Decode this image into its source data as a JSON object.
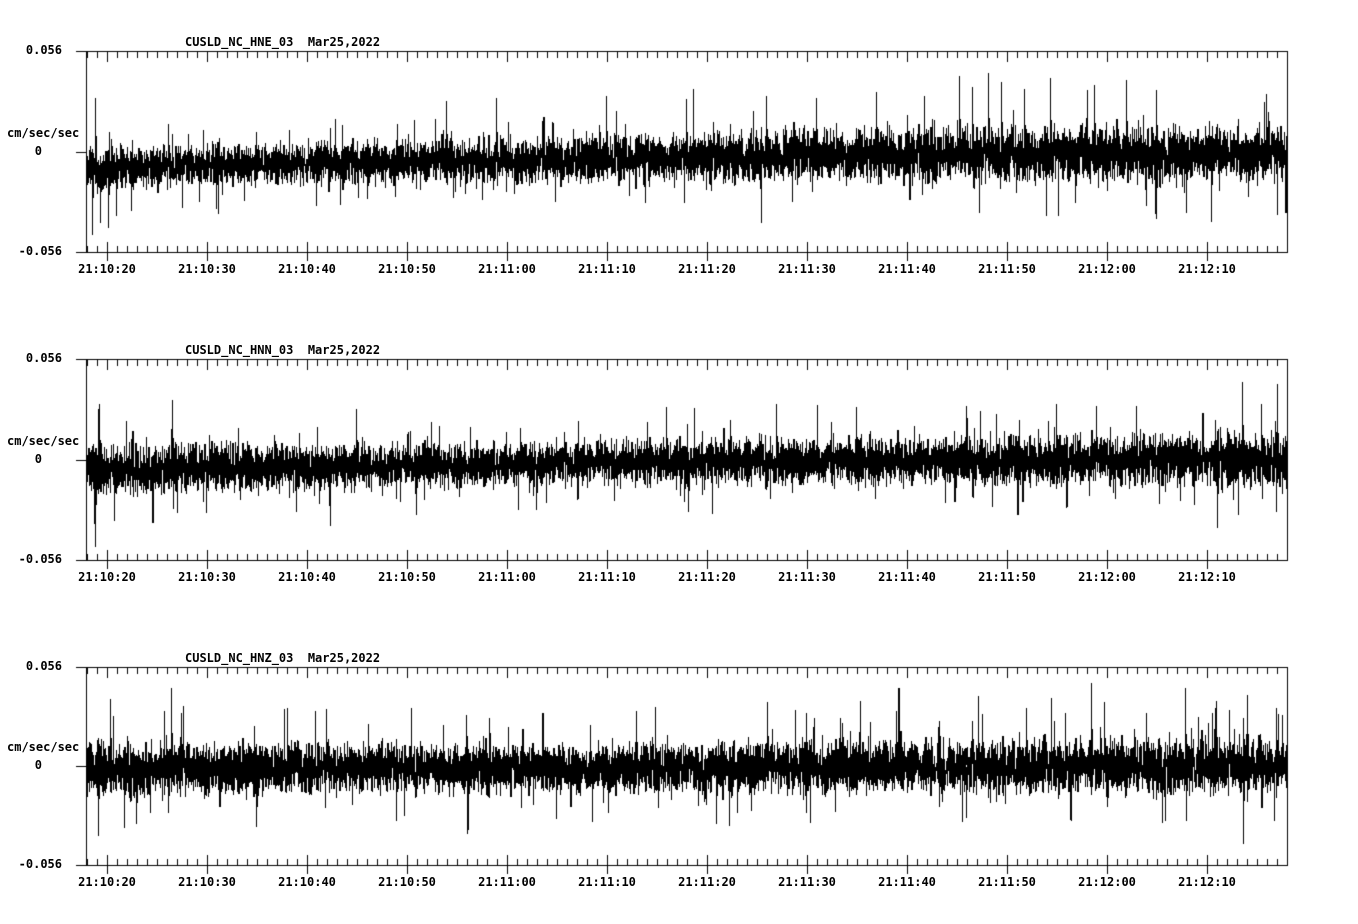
{
  "figure": {
    "background": "#ffffff",
    "foreground": "#000000"
  },
  "chart_data": [
    {
      "type": "line",
      "subtype": "seismogram-minmax-trace",
      "title": "CUSLD_NC_HNE_03  Mar25,2022",
      "station_channel": "CUSLD_NC_HNE_03",
      "date_label": "Mar25,2022",
      "ylabel": "cm/sec/sec",
      "ylim": [
        -0.056,
        0.056
      ],
      "y_tick_labels": {
        "max": "0.056",
        "zero": "0",
        "min": "-0.056"
      },
      "x_tick_labels": [
        "21:10:20",
        "21:10:30",
        "21:10:40",
        "21:10:50",
        "21:11:00",
        "21:11:10",
        "21:11:20",
        "21:11:30",
        "21:11:40",
        "21:11:50",
        "21:12:00",
        "21:12:10"
      ],
      "x_window": {
        "start": "21:10:17.9",
        "end": "21:12:18.0",
        "tick_interval_sec": 10,
        "minor_tick_sec": 1
      },
      "grid": false,
      "legend": false,
      "waveform": {
        "render_seed": 101,
        "mean_drift": [
          [
            0,
            -0.009
          ],
          [
            10,
            -0.008
          ],
          [
            30,
            -0.006
          ],
          [
            55,
            -0.004
          ],
          [
            75,
            -0.002
          ],
          [
            120,
            -0.001
          ]
        ],
        "band_halfwidth": [
          [
            0,
            0.012
          ],
          [
            10,
            0.01
          ],
          [
            40,
            0.011
          ],
          [
            55,
            0.012
          ],
          [
            65,
            0.013
          ],
          [
            80,
            0.014
          ],
          [
            95,
            0.015
          ],
          [
            110,
            0.014
          ],
          [
            120,
            0.013
          ]
        ],
        "peaks": [
          [
            0.6,
            -0.046
          ],
          [
            0.9,
            0.03
          ],
          [
            1.4,
            -0.04
          ],
          [
            2.2,
            -0.043
          ],
          [
            3.0,
            -0.036
          ],
          [
            4.5,
            -0.033
          ],
          [
            13,
            -0.032
          ],
          [
            23,
            -0.03
          ],
          [
            36,
            0.028
          ],
          [
            41,
            0.03
          ],
          [
            52,
            0.031
          ],
          [
            60,
            0.029
          ],
          [
            68,
            0.031
          ],
          [
            73,
            0.03
          ],
          [
            79,
            0.033
          ],
          [
            87.3,
            0.042
          ],
          [
            88.6,
            0.036
          ],
          [
            90.2,
            0.044
          ],
          [
            91.5,
            0.039
          ],
          [
            93.8,
            0.035
          ],
          [
            96.4,
            0.041
          ],
          [
            100.8,
            0.037
          ],
          [
            104,
            0.04
          ],
          [
            107,
            0.034
          ],
          [
            110,
            -0.034
          ],
          [
            112.5,
            -0.039
          ],
          [
            118,
            0.032
          ]
        ]
      }
    },
    {
      "type": "line",
      "subtype": "seismogram-minmax-trace",
      "title": "CUSLD_NC_HNN_03  Mar25,2022",
      "station_channel": "CUSLD_NC_HNN_03",
      "date_label": "Mar25,2022",
      "ylabel": "cm/sec/sec",
      "ylim": [
        -0.056,
        0.056
      ],
      "y_tick_labels": {
        "max": "0.056",
        "zero": "0",
        "min": "-0.056"
      },
      "x_tick_labels": [
        "21:10:20",
        "21:10:30",
        "21:10:40",
        "21:10:50",
        "21:11:00",
        "21:11:10",
        "21:11:20",
        "21:11:30",
        "21:11:40",
        "21:11:50",
        "21:12:00",
        "21:12:10"
      ],
      "x_window": {
        "start": "21:10:17.9",
        "end": "21:12:18.0",
        "tick_interval_sec": 10,
        "minor_tick_sec": 1
      },
      "grid": false,
      "legend": false,
      "waveform": {
        "render_seed": 202,
        "mean_drift": [
          [
            0,
            -0.006
          ],
          [
            20,
            -0.004
          ],
          [
            50,
            -0.002
          ],
          [
            120,
            0.0
          ]
        ],
        "band_halfwidth": [
          [
            0,
            0.013
          ],
          [
            15,
            0.012
          ],
          [
            45,
            0.011
          ],
          [
            75,
            0.012
          ],
          [
            100,
            0.013
          ],
          [
            120,
            0.014
          ]
        ],
        "peaks": [
          [
            0.9,
            -0.049
          ],
          [
            1.3,
            0.031
          ],
          [
            2.8,
            -0.034
          ],
          [
            8.6,
            0.033
          ],
          [
            12,
            -0.03
          ],
          [
            21,
            -0.029
          ],
          [
            27,
            0.028
          ],
          [
            33,
            -0.031
          ],
          [
            45,
            -0.028
          ],
          [
            58,
            0.029
          ],
          [
            69,
            0.031
          ],
          [
            77,
            0.029
          ],
          [
            88,
            0.03
          ],
          [
            97,
            0.031
          ],
          [
            105,
            0.03
          ],
          [
            113.1,
            -0.038
          ],
          [
            115.6,
            0.043
          ],
          [
            117.5,
            0.031
          ],
          [
            119,
            -0.029
          ]
        ]
      }
    },
    {
      "type": "line",
      "subtype": "seismogram-minmax-trace",
      "title": "CUSLD_NC_HNZ_03  Mar25,2022",
      "station_channel": "CUSLD_NC_HNZ_03",
      "date_label": "Mar25,2022",
      "ylabel": "cm/sec/sec",
      "ylim": [
        -0.056,
        0.056
      ],
      "y_tick_labels": {
        "max": "0.056",
        "zero": "0",
        "min": "-0.056"
      },
      "x_tick_labels": [
        "21:10:20",
        "21:10:30",
        "21:10:40",
        "21:10:50",
        "21:11:00",
        "21:11:10",
        "21:11:20",
        "21:11:30",
        "21:11:40",
        "21:11:50",
        "21:12:00",
        "21:12:10"
      ],
      "x_window": {
        "start": "21:10:17.9",
        "end": "21:12:18.0",
        "tick_interval_sec": 10,
        "minor_tick_sec": 1
      },
      "grid": false,
      "legend": false,
      "waveform": {
        "render_seed": 303,
        "mean_drift": [
          [
            0,
            -0.002
          ],
          [
            30,
            -0.001
          ],
          [
            120,
            0.0
          ]
        ],
        "band_halfwidth": [
          [
            0,
            0.014
          ],
          [
            20,
            0.013
          ],
          [
            60,
            0.013
          ],
          [
            90,
            0.014
          ],
          [
            120,
            0.015
          ]
        ],
        "peaks": [
          [
            1.2,
            -0.04
          ],
          [
            2.4,
            0.038
          ],
          [
            3.8,
            -0.035
          ],
          [
            8.5,
            0.044
          ],
          [
            9.5,
            0.03
          ],
          [
            17,
            -0.034
          ],
          [
            24,
            0.032
          ],
          [
            31,
            -0.031
          ],
          [
            38,
            0.029
          ],
          [
            47,
            -0.03
          ],
          [
            55,
            0.031
          ],
          [
            63,
            -0.033
          ],
          [
            72,
            0.03
          ],
          [
            81,
            0.031
          ],
          [
            88,
            -0.029
          ],
          [
            94,
            0.033
          ],
          [
            100.5,
            0.047
          ],
          [
            101.8,
            0.036
          ],
          [
            106,
            0.03
          ],
          [
            110,
            -0.031
          ],
          [
            113,
            0.037
          ],
          [
            115.7,
            -0.044
          ],
          [
            116.1,
            0.04
          ],
          [
            119,
            0.033
          ]
        ]
      }
    }
  ]
}
